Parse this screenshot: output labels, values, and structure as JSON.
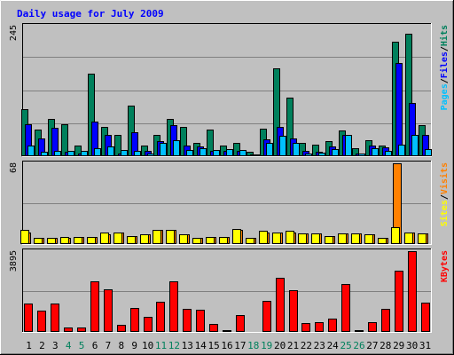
{
  "chart_data": {
    "type": "bar",
    "title": "Daily usage for July 2009",
    "categories": [
      "1",
      "2",
      "3",
      "4",
      "5",
      "6",
      "7",
      "8",
      "9",
      "10",
      "11",
      "12",
      "13",
      "14",
      "15",
      "16",
      "17",
      "18",
      "19",
      "20",
      "21",
      "22",
      "23",
      "24",
      "25",
      "26",
      "27",
      "28",
      "29",
      "30",
      "31"
    ],
    "weekend_days": [
      "4",
      "5",
      "11",
      "12",
      "18",
      "19",
      "25",
      "26"
    ],
    "panels": [
      {
        "id": "hits-files-pages",
        "ymax_label": "245",
        "ylim": [
          0,
          245
        ],
        "legend": [
          {
            "label": "Pages",
            "color": "#00c0ff"
          },
          {
            "label": "/",
            "color": "#000000"
          },
          {
            "label": "Files",
            "color": "#0000ff"
          },
          {
            "label": "/",
            "color": "#000000"
          },
          {
            "label": "Hits",
            "color": "#00805c"
          }
        ],
        "series": [
          {
            "name": "Hits",
            "color": "#00805c",
            "values": [
              88,
              50,
              70,
              60,
              20,
              155,
              55,
              40,
              95,
              20,
              40,
              70,
              55,
              25,
              50,
              20,
              25,
              8,
              52,
              165,
              110,
              25,
              22,
              28,
              48,
              15,
              30,
              20,
              215,
              230,
              58
            ]
          },
          {
            "name": "Files",
            "color": "#0000ff",
            "values": [
              60,
              33,
              53,
              8,
              5,
              65,
              40,
              5,
              45,
              10,
              28,
              58,
              20,
              18,
              10,
              10,
              10,
              4,
              32,
              55,
              33,
              10,
              8,
              18,
              40,
              5,
              20,
              17,
              175,
              100,
              40
            ]
          },
          {
            "name": "Pages",
            "color": "#00c0ff",
            "values": [
              20,
              8,
              10,
              10,
              10,
              15,
              18,
              12,
              10,
              5,
              25,
              30,
              12,
              15,
              12,
              13,
              12,
              4,
              25,
              38,
              25,
              5,
              6,
              13,
              40,
              5,
              15,
              10,
              22,
              40,
              14
            ]
          }
        ]
      },
      {
        "id": "visits-sites",
        "ymax_label": "68",
        "ylim": [
          0,
          68
        ],
        "legend": [
          {
            "label": "Sites",
            "color": "#ffff00"
          },
          {
            "label": "/",
            "color": "#000000"
          },
          {
            "label": "Visits",
            "color": "#ff8000"
          }
        ],
        "series": [
          {
            "name": "Visits",
            "color": "#ff8000",
            "values": [
              10,
              5,
              5,
              5,
              6,
              6,
              8,
              10,
              7,
              8,
              12,
              12,
              8,
              5,
              6,
              6,
              12,
              5,
              10,
              10,
              10,
              9,
              9,
              7,
              9,
              9,
              8,
              5,
              68,
              10,
              9
            ]
          },
          {
            "name": "Sites",
            "color": "#ffff00",
            "values": [
              12,
              5,
              5,
              6,
              6,
              6,
              10,
              10,
              7,
              8,
              12,
              12,
              8,
              5,
              6,
              6,
              13,
              5,
              11,
              10,
              11,
              9,
              9,
              7,
              9,
              9,
              8,
              5,
              14,
              10,
              9
            ]
          }
        ]
      },
      {
        "id": "kbytes",
        "ymax_label": "3895",
        "ylim": [
          0,
          3895
        ],
        "legend": [
          {
            "label": "KBytes",
            "color": "#ff0000"
          }
        ],
        "series": [
          {
            "name": "KBytes",
            "color": "#ff0000",
            "values": [
              1370,
              1040,
              1350,
              200,
              200,
              2430,
              2070,
              350,
              1160,
              720,
              1460,
              2460,
              1110,
              1060,
              400,
              80,
              830,
              0,
              1480,
              2630,
              2030,
              430,
              480,
              650,
              2330,
              90,
              480,
              1110,
              2950,
              3895,
              1400
            ]
          }
        ]
      }
    ]
  },
  "colors": {
    "background": "#c0c0c0",
    "title": "#0000ff",
    "weekday_label": "#000000",
    "weekend_label": "#00805c",
    "gridline": "#808080"
  }
}
